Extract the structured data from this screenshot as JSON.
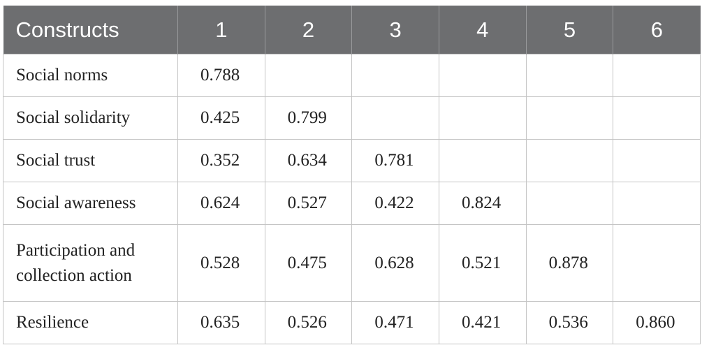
{
  "table": {
    "header": [
      "Constructs",
      "1",
      "2",
      "3",
      "4",
      "5",
      "6"
    ],
    "rows": [
      {
        "label": "Social norms",
        "values": [
          "0.788"
        ]
      },
      {
        "label": "Social solidarity",
        "values": [
          "0.425",
          "0.799"
        ]
      },
      {
        "label": "Social trust",
        "values": [
          "0.352",
          "0.634",
          "0.781"
        ]
      },
      {
        "label": "Social awareness",
        "values": [
          "0.624",
          "0.527",
          "0.422",
          "0.824"
        ]
      },
      {
        "label": "Participation and collection action",
        "values": [
          "0.528",
          "0.475",
          "0.628",
          "0.521",
          "0.878"
        ]
      },
      {
        "label": "Resilience",
        "values": [
          "0.635",
          "0.526",
          "0.471",
          "0.421",
          "0.536",
          "0.860"
        ]
      }
    ]
  }
}
